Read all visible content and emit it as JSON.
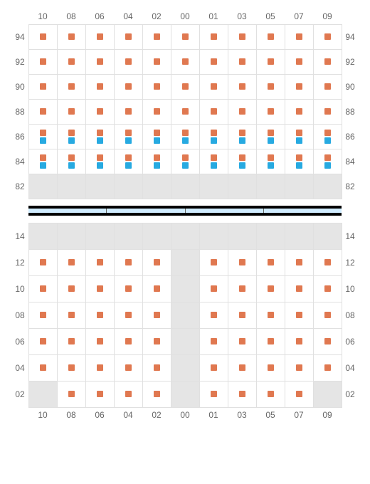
{
  "colors": {
    "orange": "#e07850",
    "blue": "#27aae1",
    "empty_bg": "#e5e5e5",
    "cell_bg": "#ffffff",
    "grid_border": "#e0e0e0",
    "label_color": "#666666",
    "sep_fill": "#d0ecff",
    "sep_border": "#000000"
  },
  "layout": {
    "cell_height_upper": 36,
    "cell_height_lower": 38,
    "marker_size": 9,
    "label_fontsize": 12
  },
  "columns": [
    "10",
    "08",
    "06",
    "04",
    "02",
    "00",
    "01",
    "03",
    "05",
    "07",
    "09"
  ],
  "upper": {
    "row_labels": [
      "94",
      "92",
      "90",
      "88",
      "86",
      "84",
      "82"
    ],
    "cells": [
      [
        [
          "o"
        ],
        [
          "o"
        ],
        [
          "o"
        ],
        [
          "o"
        ],
        [
          "o"
        ],
        [
          "o"
        ],
        [
          "o"
        ],
        [
          "o"
        ],
        [
          "o"
        ],
        [
          "o"
        ],
        [
          "o"
        ]
      ],
      [
        [
          "o"
        ],
        [
          "o"
        ],
        [
          "o"
        ],
        [
          "o"
        ],
        [
          "o"
        ],
        [
          "o"
        ],
        [
          "o"
        ],
        [
          "o"
        ],
        [
          "o"
        ],
        [
          "o"
        ],
        [
          "o"
        ]
      ],
      [
        [
          "o"
        ],
        [
          "o"
        ],
        [
          "o"
        ],
        [
          "o"
        ],
        [
          "o"
        ],
        [
          "o"
        ],
        [
          "o"
        ],
        [
          "o"
        ],
        [
          "o"
        ],
        [
          "o"
        ],
        [
          "o"
        ]
      ],
      [
        [
          "o"
        ],
        [
          "o"
        ],
        [
          "o"
        ],
        [
          "o"
        ],
        [
          "o"
        ],
        [
          "o"
        ],
        [
          "o"
        ],
        [
          "o"
        ],
        [
          "o"
        ],
        [
          "o"
        ],
        [
          "o"
        ]
      ],
      [
        [
          "o",
          "b"
        ],
        [
          "o",
          "b"
        ],
        [
          "o",
          "b"
        ],
        [
          "o",
          "b"
        ],
        [
          "o",
          "b"
        ],
        [
          "o",
          "b"
        ],
        [
          "o",
          "b"
        ],
        [
          "o",
          "b"
        ],
        [
          "o",
          "b"
        ],
        [
          "o",
          "b"
        ],
        [
          "o",
          "b"
        ]
      ],
      [
        [
          "o",
          "b"
        ],
        [
          "o",
          "b"
        ],
        [
          "o",
          "b"
        ],
        [
          "o",
          "b"
        ],
        [
          "o",
          "b"
        ],
        [
          "o",
          "b"
        ],
        [
          "o",
          "b"
        ],
        [
          "o",
          "b"
        ],
        [
          "o",
          "b"
        ],
        [
          "o",
          "b"
        ],
        [
          "o",
          "b"
        ]
      ],
      [
        [
          "e"
        ],
        [
          "e"
        ],
        [
          "e"
        ],
        [
          "e"
        ],
        [
          "e"
        ],
        [
          "e"
        ],
        [
          "e"
        ],
        [
          "e"
        ],
        [
          "e"
        ],
        [
          "e"
        ],
        [
          "e"
        ]
      ]
    ]
  },
  "separator": {
    "segments": 4
  },
  "lower": {
    "row_labels": [
      "14",
      "12",
      "10",
      "08",
      "06",
      "04",
      "02"
    ],
    "cells": [
      [
        [
          "e"
        ],
        [
          "e"
        ],
        [
          "e"
        ],
        [
          "e"
        ],
        [
          "e"
        ],
        [
          "e"
        ],
        [
          "e"
        ],
        [
          "e"
        ],
        [
          "e"
        ],
        [
          "e"
        ],
        [
          "e"
        ]
      ],
      [
        [
          "o"
        ],
        [
          "o"
        ],
        [
          "o"
        ],
        [
          "o"
        ],
        [
          "o"
        ],
        [
          "e"
        ],
        [
          "o"
        ],
        [
          "o"
        ],
        [
          "o"
        ],
        [
          "o"
        ],
        [
          "o"
        ]
      ],
      [
        [
          "o"
        ],
        [
          "o"
        ],
        [
          "o"
        ],
        [
          "o"
        ],
        [
          "o"
        ],
        [
          "e"
        ],
        [
          "o"
        ],
        [
          "o"
        ],
        [
          "o"
        ],
        [
          "o"
        ],
        [
          "o"
        ]
      ],
      [
        [
          "o"
        ],
        [
          "o"
        ],
        [
          "o"
        ],
        [
          "o"
        ],
        [
          "o"
        ],
        [
          "e"
        ],
        [
          "o"
        ],
        [
          "o"
        ],
        [
          "o"
        ],
        [
          "o"
        ],
        [
          "o"
        ]
      ],
      [
        [
          "o"
        ],
        [
          "o"
        ],
        [
          "o"
        ],
        [
          "o"
        ],
        [
          "o"
        ],
        [
          "e"
        ],
        [
          "o"
        ],
        [
          "o"
        ],
        [
          "o"
        ],
        [
          "o"
        ],
        [
          "o"
        ]
      ],
      [
        [
          "o"
        ],
        [
          "o"
        ],
        [
          "o"
        ],
        [
          "o"
        ],
        [
          "o"
        ],
        [
          "e"
        ],
        [
          "o"
        ],
        [
          "o"
        ],
        [
          "o"
        ],
        [
          "o"
        ],
        [
          "o"
        ]
      ],
      [
        [
          "e"
        ],
        [
          "o"
        ],
        [
          "o"
        ],
        [
          "o"
        ],
        [
          "o"
        ],
        [
          "e"
        ],
        [
          "o"
        ],
        [
          "o"
        ],
        [
          "o"
        ],
        [
          "o"
        ],
        [
          "e"
        ]
      ]
    ]
  }
}
